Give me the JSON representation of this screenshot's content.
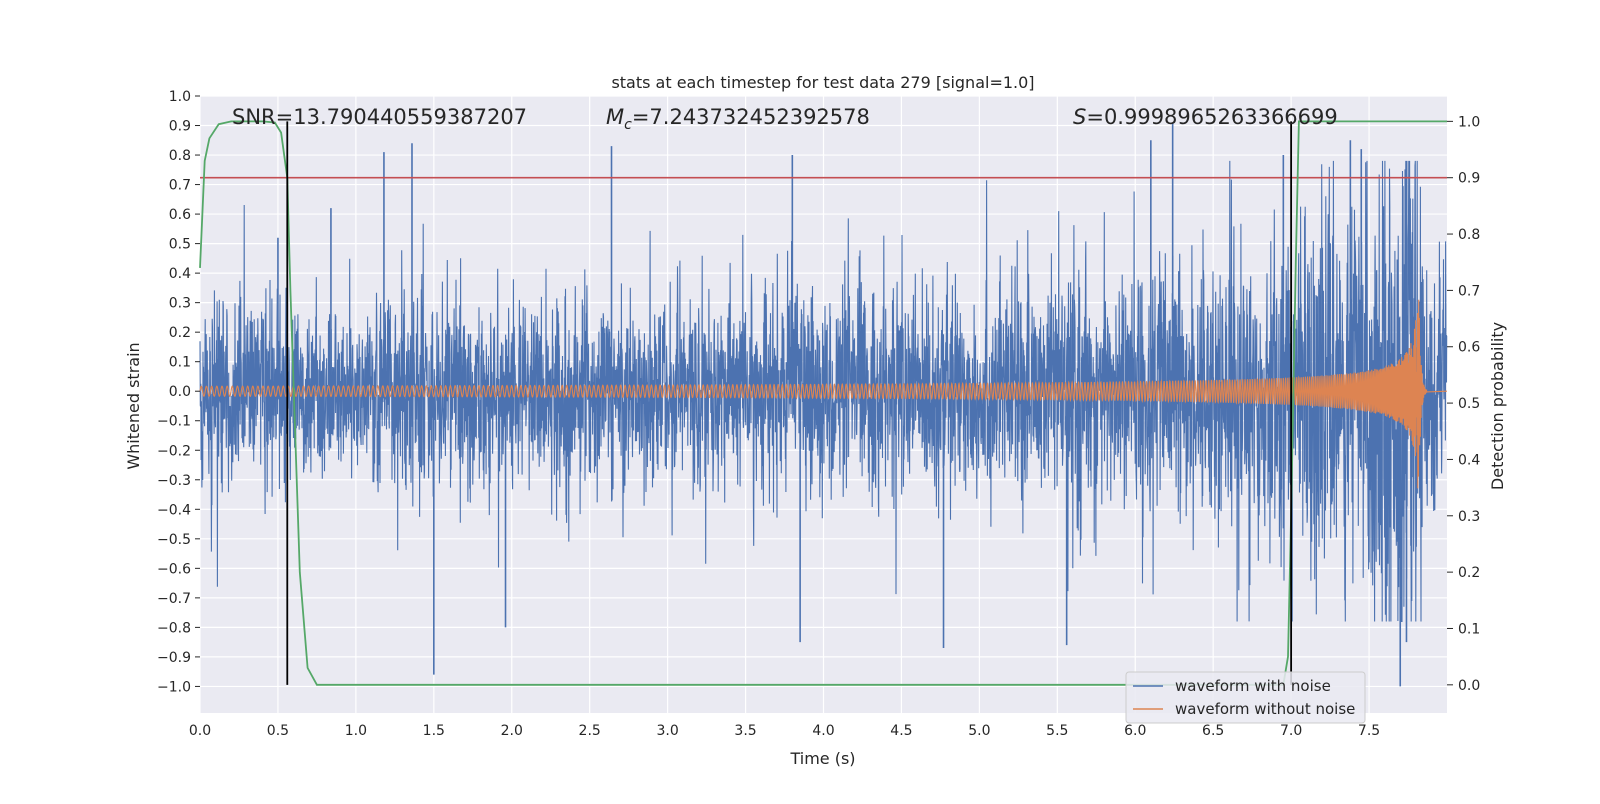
{
  "chart_data": {
    "type": "line",
    "title": "stats at each timestep for test data 279 [signal=1.0]",
    "xlabel": "Time (s)",
    "ylabel_left": "Whitened strain",
    "ylabel_right": "Detection probability",
    "xlim": [
      0.0,
      8.0
    ],
    "ylim_left": [
      -1.09,
      1.0
    ],
    "ylim_right": [
      -0.05,
      1.045
    ],
    "x_ticks": [
      "0.0",
      "0.5",
      "1.0",
      "1.5",
      "2.0",
      "2.5",
      "3.0",
      "3.5",
      "4.0",
      "4.5",
      "5.0",
      "5.5",
      "6.0",
      "6.5",
      "7.0",
      "7.5"
    ],
    "x_tick_values": [
      0.0,
      0.5,
      1.0,
      1.5,
      2.0,
      2.5,
      3.0,
      3.5,
      4.0,
      4.5,
      5.0,
      5.5,
      6.0,
      6.5,
      7.0,
      7.5
    ],
    "y_left_ticks": [
      "1.0",
      "0.9",
      "0.8",
      "0.7",
      "0.6",
      "0.5",
      "0.4",
      "0.3",
      "0.2",
      "0.1",
      "0.0",
      "−0.1",
      "−0.2",
      "−0.3",
      "−0.4",
      "−0.5",
      "−0.6",
      "−0.7",
      "−0.8",
      "−0.9",
      "−1.0"
    ],
    "y_left_tick_values": [
      1.0,
      0.9,
      0.8,
      0.7,
      0.6,
      0.5,
      0.4,
      0.3,
      0.2,
      0.1,
      0.0,
      -0.1,
      -0.2,
      -0.3,
      -0.4,
      -0.5,
      -0.6,
      -0.7,
      -0.8,
      -0.9,
      -1.0
    ],
    "y_right_ticks": [
      "1.0",
      "0.9",
      "0.8",
      "0.7",
      "0.6",
      "0.5",
      "0.4",
      "0.3",
      "0.2",
      "0.1",
      "0.0"
    ],
    "y_right_tick_values": [
      1.0,
      0.9,
      0.8,
      0.7,
      0.6,
      0.5,
      0.4,
      0.3,
      0.2,
      0.1,
      0.0
    ],
    "grid": true,
    "annotations": {
      "snr": "SNR=13.790440559387207",
      "mc_symbol": "M",
      "mc_sub": "c",
      "mc_value": "=7.243732452392578",
      "s_symbol": "S",
      "s_value": "=0.9998965263366699"
    },
    "threshold": {
      "value": 0.9,
      "axis": "right",
      "color": "#c44e52"
    },
    "vertical_markers": [
      0.56,
      7.0
    ],
    "series": [
      {
        "name": "waveform with noise",
        "color": "#4c72b0",
        "axis": "left",
        "kind": "noise-envelope",
        "envelope_x": [
          0.0,
          1.0,
          2.0,
          3.0,
          4.0,
          5.0,
          5.5,
          6.0,
          6.5,
          7.0,
          7.3,
          7.5,
          7.7,
          7.8,
          7.85,
          8.0
        ],
        "envelope_amp": [
          0.11,
          0.11,
          0.11,
          0.115,
          0.12,
          0.125,
          0.13,
          0.14,
          0.16,
          0.19,
          0.22,
          0.26,
          0.32,
          0.3,
          0.16,
          0.16
        ],
        "peak_x": [
          0.5,
          0.84,
          1.18,
          1.36,
          1.5,
          1.96,
          2.64,
          3.8,
          3.85,
          4.77,
          5.56,
          6.1,
          6.24,
          6.95,
          7.38,
          7.45,
          7.7,
          7.74
        ],
        "peak_y": [
          0.52,
          0.62,
          0.81,
          0.84,
          -0.96,
          -0.8,
          0.83,
          0.8,
          -0.85,
          -0.87,
          -0.86,
          0.85,
          0.91,
          0.8,
          0.85,
          0.82,
          -1.0,
          -0.85
        ]
      },
      {
        "name": "waveform without noise",
        "color": "#dd8452",
        "axis": "left",
        "kind": "chirp",
        "merger_time": 7.82,
        "amp_start": 0.017,
        "amp_peak": 0.33,
        "ringdown_end": 7.87
      },
      {
        "name": "detection probability",
        "color": "#55a868",
        "axis": "right",
        "x": [
          0.0,
          0.03,
          0.06,
          0.12,
          0.2,
          0.3,
          0.4,
          0.48,
          0.52,
          0.56,
          0.58,
          0.61,
          0.64,
          0.69,
          0.75,
          1.0,
          2.0,
          3.0,
          4.0,
          5.0,
          6.0,
          6.5,
          6.95,
          6.98,
          7.0,
          7.03,
          7.05,
          7.1,
          7.5,
          8.0
        ],
        "y": [
          0.74,
          0.93,
          0.97,
          0.995,
          1.0,
          1.0,
          1.0,
          0.998,
          0.98,
          0.9,
          0.7,
          0.45,
          0.2,
          0.03,
          0.0,
          0.0,
          0.0,
          0.0,
          0.0,
          0.0,
          0.0,
          0.0,
          0.0,
          0.05,
          0.3,
          0.75,
          1.0,
          1.0,
          1.0,
          1.0
        ]
      }
    ],
    "legend": {
      "placement": "lower-right",
      "entries": [
        {
          "label": "waveform with noise",
          "color": "#4c72b0"
        },
        {
          "label": "waveform without noise",
          "color": "#dd8452"
        }
      ]
    }
  }
}
